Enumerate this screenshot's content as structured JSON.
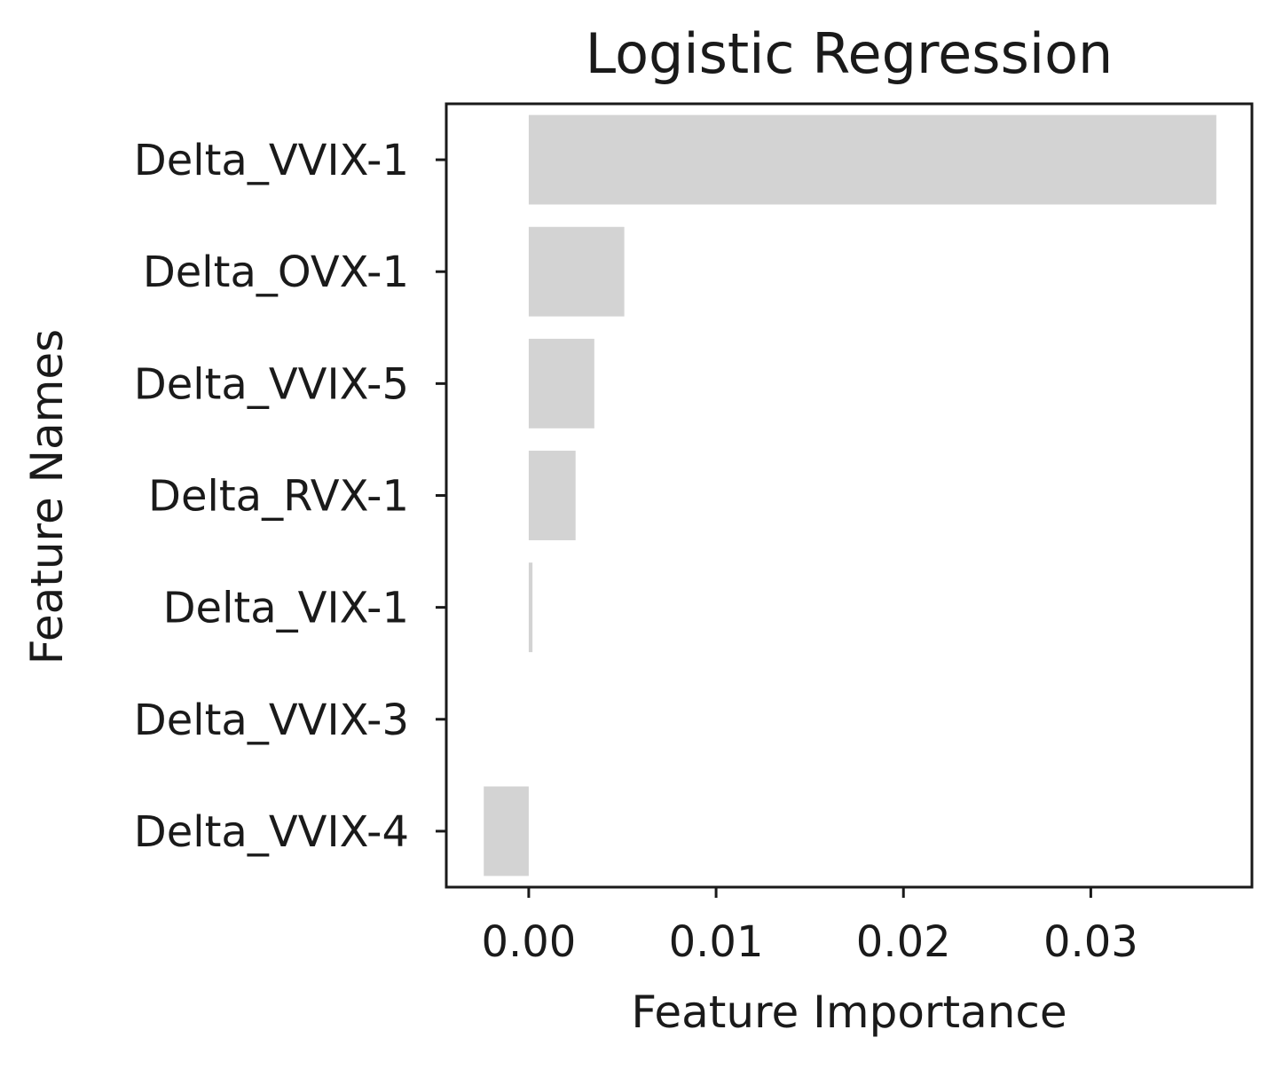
{
  "chart_data": {
    "type": "bar",
    "orientation": "horizontal",
    "title": "Logistic Regression",
    "xlabel": "Feature Importance",
    "ylabel": "Feature Names",
    "categories": [
      "Delta_VVIX-1",
      "Delta_OVX-1",
      "Delta_VVIX-5",
      "Delta_RVX-1",
      "Delta_VIX-1",
      "Delta_VVIX-3",
      "Delta_VVIX-4"
    ],
    "values": [
      0.0367,
      0.0051,
      0.0035,
      0.0025,
      0.0002,
      0.0,
      -0.0024
    ],
    "xlim": [
      -0.0044,
      0.0386
    ],
    "xticks": [
      0.0,
      0.01,
      0.02,
      0.03
    ],
    "xtick_labels": [
      "0.00",
      "0.01",
      "0.02",
      "0.03"
    ],
    "grid": false,
    "legend": "none",
    "bar_color": "#d3d3d3"
  }
}
